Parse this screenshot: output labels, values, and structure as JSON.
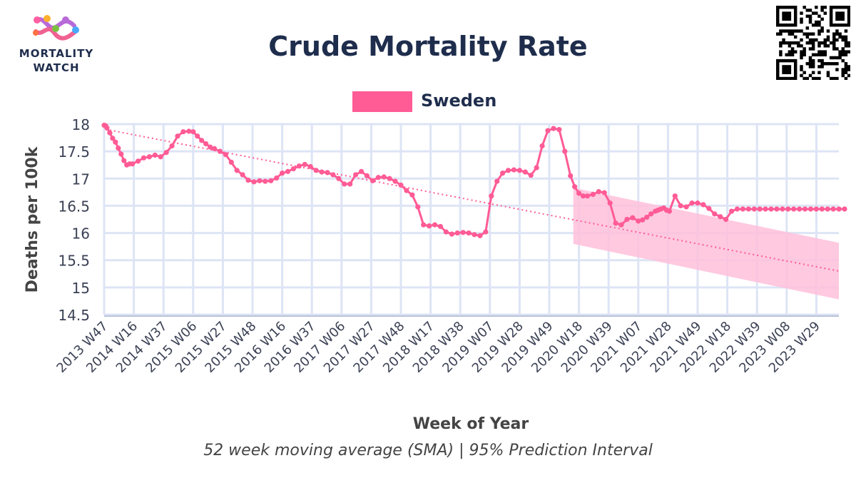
{
  "branding": {
    "logo_line1": "MORTALITY",
    "logo_line2": "WATCH"
  },
  "colors": {
    "title": "#1f2d4d",
    "series": "#ff5b95",
    "band": "#ffbfdb",
    "grid": "#dde4f5",
    "text": "#444444",
    "tick": "#3b4155"
  },
  "chart_data": {
    "type": "line",
    "title": "Crude Mortality Rate",
    "xlabel": "Week of Year",
    "ylabel": "Deaths per 100k",
    "caption": "52 week moving average (SMA) | 95% Prediction Interval",
    "legend": {
      "position": "top-center",
      "entries": [
        "Sweden"
      ]
    },
    "ylim": [
      14.5,
      18
    ],
    "yticks": [
      14.5,
      15,
      15.5,
      16,
      16.5,
      17,
      17.5,
      18
    ],
    "ytick_labels": [
      "14.5",
      "15",
      "15.5",
      "16",
      "16.5",
      "17",
      "17.5",
      "18"
    ],
    "grid": true,
    "x_tick_labels": [
      "2013 W47",
      "2014 W16",
      "2014 W37",
      "2015 W06",
      "2015 W27",
      "2015 W48",
      "2016 W16",
      "2016 W37",
      "2017 W06",
      "2017 W27",
      "2017 W48",
      "2018 W17",
      "2018 W38",
      "2019 W07",
      "2019 W28",
      "2019 W49",
      "2020 W18",
      "2020 W39",
      "2021 W07",
      "2021 W28",
      "2021 W49",
      "2022 W18",
      "2022 W39",
      "2023 W08",
      "2023 W29"
    ],
    "x_weeks_per_tick": 21,
    "series": [
      {
        "name": "Sweden",
        "type": "line+markers",
        "weeks_from_first_tick": [
          0,
          1,
          2,
          4,
          6,
          8,
          10,
          12,
          14,
          16,
          18,
          20,
          24,
          28,
          32,
          36,
          40,
          44,
          48,
          52,
          56,
          60,
          63,
          66,
          69,
          72,
          75,
          78,
          82,
          86,
          90,
          94,
          98,
          102,
          106,
          110,
          114,
          118,
          122,
          126,
          130,
          134,
          138,
          142,
          146,
          150,
          154,
          158,
          162,
          166,
          170,
          174,
          178,
          182,
          186,
          190,
          194,
          198,
          202,
          206,
          210,
          214,
          218,
          222,
          226,
          230,
          234,
          238,
          242,
          246,
          250,
          254,
          258,
          262,
          266,
          270,
          274,
          278,
          282,
          286,
          290,
          294,
          298,
          302,
          306,
          310,
          314,
          318,
          322,
          326,
          330,
          333,
          336,
          339,
          342,
          346,
          350,
          354,
          358,
          362,
          366,
          370,
          374,
          378,
          381,
          384,
          387,
          390,
          392,
          394,
          396,
          398,
          400,
          404,
          408,
          412,
          416,
          420,
          424,
          428,
          432,
          436,
          440,
          444,
          448,
          452,
          456,
          460,
          464,
          468,
          472,
          476,
          480,
          484,
          488,
          492,
          496,
          500,
          504,
          508,
          512,
          516,
          520,
          524
        ],
        "values": [
          17.98,
          17.97,
          17.93,
          17.84,
          17.74,
          17.67,
          17.56,
          17.45,
          17.33,
          17.25,
          17.27,
          17.27,
          17.32,
          17.38,
          17.4,
          17.43,
          17.4,
          17.48,
          17.6,
          17.78,
          17.86,
          17.87,
          17.86,
          17.78,
          17.7,
          17.64,
          17.58,
          17.55,
          17.5,
          17.44,
          17.3,
          17.15,
          17.07,
          16.97,
          16.94,
          16.96,
          16.95,
          16.96,
          17.01,
          17.1,
          17.13,
          17.18,
          17.23,
          17.26,
          17.22,
          17.15,
          17.12,
          17.11,
          17.07,
          17.0,
          16.9,
          16.9,
          17.07,
          17.13,
          17.05,
          16.96,
          17.02,
          17.03,
          17.0,
          16.95,
          16.88,
          16.78,
          16.7,
          16.48,
          16.15,
          16.13,
          16.15,
          16.12,
          16.02,
          15.98,
          16.0,
          16.01,
          16.0,
          15.97,
          15.95,
          16.02,
          16.68,
          16.95,
          17.1,
          17.15,
          17.16,
          17.15,
          17.12,
          17.06,
          17.2,
          17.6,
          17.88,
          17.92,
          17.9,
          17.5,
          17.05,
          16.85,
          16.73,
          16.68,
          16.68,
          16.71,
          16.76,
          16.74,
          16.55,
          16.18,
          16.15,
          16.25,
          16.28,
          16.22,
          16.24,
          16.29,
          16.35,
          16.4,
          16.42,
          16.44,
          16.46,
          16.42,
          16.4,
          16.68,
          16.5,
          16.48,
          16.55,
          16.55,
          16.52,
          16.45,
          16.35,
          16.3,
          16.25,
          16.4,
          16.44,
          16.44,
          16.44,
          16.44,
          16.44,
          16.44,
          16.44,
          16.44,
          16.44,
          16.44,
          16.44,
          16.44,
          16.44,
          16.44,
          16.44,
          16.44,
          16.44,
          16.44,
          16.44,
          16.44
        ]
      }
    ],
    "trend": {
      "style": "dotted",
      "start_week": 4,
      "end_week": 525,
      "start_value": 17.89,
      "end_value": 15.3
    },
    "prediction_interval": {
      "start_week": 332,
      "end_week": 525,
      "upper": [
        16.83,
        15.82
      ],
      "lower": [
        15.8,
        14.78
      ]
    }
  }
}
